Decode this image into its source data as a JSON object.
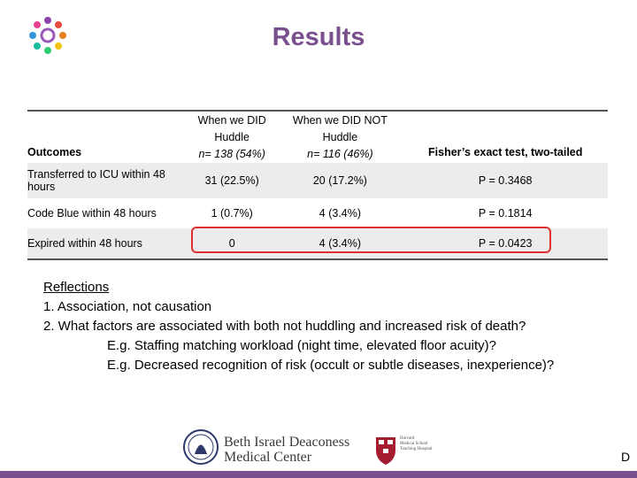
{
  "title": "Results",
  "table": {
    "headers": {
      "outcomes": "Outcomes",
      "did_huddle_line1": "When we DID",
      "did_huddle_line2": "Huddle",
      "did_huddle_n": "n= 138 (54%)",
      "did_not_huddle_line1": "When we DID NOT",
      "did_not_huddle_line2": "Huddle",
      "did_not_huddle_n": "n= 116 (46%)",
      "fisher": "Fisher’s exact test, two-tailed"
    },
    "rows": [
      {
        "outcome": "Transferred to ICU within 48 hours",
        "did": "31 (22.5%)",
        "did_not": "20 (17.2%)",
        "p": "P = 0.3468"
      },
      {
        "outcome": "Code Blue within 48 hours",
        "did": "1 (0.7%)",
        "did_not": "4 (3.4%)",
        "p": "P = 0.1814"
      },
      {
        "outcome": "Expired within 48 hours",
        "did": "0",
        "did_not": "4 (3.4%)",
        "p": "P = 0.0423"
      }
    ],
    "highlight_color": "#e03030"
  },
  "reflections": {
    "heading": "Reflections",
    "items": [
      "1. Association, not causation",
      "2. What factors are associated with both not huddling and increased risk of death?"
    ],
    "examples": [
      "E.g. Staffing matching workload (night time, elevated floor acuity)?",
      "E.g. Decreased recognition of risk (occult or subtle diseases, inexperience)?"
    ]
  },
  "footer": {
    "org_line1": "Beth Israel Deaconess",
    "org_line2": "Medical Center",
    "affiliate_line1": "Harvard",
    "affiliate_line2": "Medical School",
    "affiliate_line3": "Teaching Hospital",
    "corner_letter": "D"
  },
  "colors": {
    "accent": "#7a4f8e",
    "shade": "#ececec"
  }
}
